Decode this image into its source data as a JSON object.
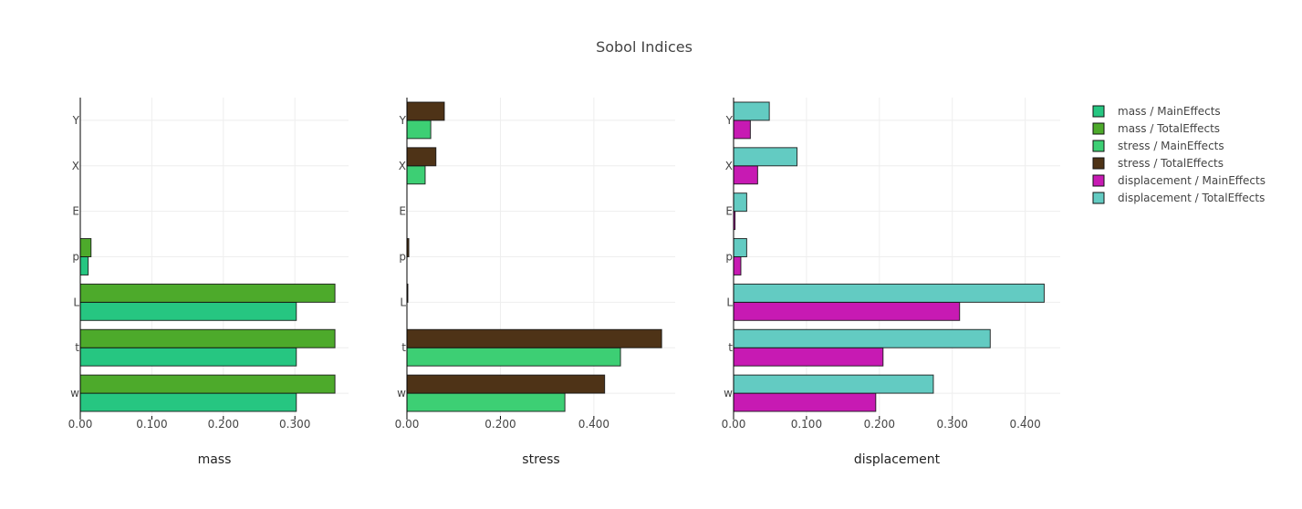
{
  "chart_data": {
    "type": "bar",
    "orientation": "horizontal",
    "title": "Sobol Indices",
    "categories": [
      "w",
      "t",
      "L",
      "p",
      "E",
      "X",
      "Y"
    ],
    "legend_position": "top-right",
    "grid": true,
    "subplots": [
      {
        "name": "mass",
        "xlabel": "mass",
        "xlim": [
          0,
          0.375
        ],
        "xticks": [
          0,
          0.1,
          0.2,
          0.3
        ],
        "xtick_labels": [
          "0.00",
          "0.100",
          "0.200",
          "0.300"
        ],
        "series": [
          {
            "name": "mass / MainEffects",
            "color": "#26C681",
            "values": [
              0.302,
              0.302,
              0.302,
              0.011,
              0.0,
              0.0,
              0.0
            ]
          },
          {
            "name": "mass / TotalEffects",
            "color": "#4DAA2B",
            "values": [
              0.356,
              0.356,
              0.356,
              0.015,
              0.0,
              0.0,
              0.0
            ]
          }
        ]
      },
      {
        "name": "stress",
        "xlabel": "stress",
        "xlim": [
          0,
          0.574
        ],
        "xticks": [
          0,
          0.2,
          0.4
        ],
        "xtick_labels": [
          "0.00",
          "0.200",
          "0.400"
        ],
        "series": [
          {
            "name": "stress / MainEffects",
            "color": "#3DCF74",
            "values": [
              0.338,
              0.457,
              0.0,
              0.0,
              0.0,
              0.039,
              0.051
            ]
          },
          {
            "name": "stress / TotalEffects",
            "color": "#4E3317",
            "values": [
              0.423,
              0.545,
              0.002,
              0.004,
              0.0,
              0.062,
              0.08
            ]
          }
        ]
      },
      {
        "name": "displacement",
        "xlabel": "displacement",
        "xlim": [
          0,
          0.448
        ],
        "xticks": [
          0,
          0.1,
          0.2,
          0.3,
          0.4
        ],
        "xtick_labels": [
          "0.00",
          "0.100",
          "0.200",
          "0.300",
          "0.400"
        ],
        "series": [
          {
            "name": "displacement / MainEffects",
            "color": "#C71AB3",
            "values": [
              0.195,
              0.205,
              0.31,
              0.01,
              0.002,
              0.033,
              0.023
            ]
          },
          {
            "name": "displacement / TotalEffects",
            "color": "#63CBC2",
            "values": [
              0.274,
              0.352,
              0.426,
              0.018,
              0.018,
              0.087,
              0.049
            ]
          }
        ]
      }
    ],
    "legend": [
      {
        "label": "mass / MainEffects",
        "color": "#26C681"
      },
      {
        "label": "mass / TotalEffects",
        "color": "#4DAA2B"
      },
      {
        "label": "stress / MainEffects",
        "color": "#3DCF74"
      },
      {
        "label": "stress / TotalEffects",
        "color": "#4E3317"
      },
      {
        "label": "displacement / MainEffects",
        "color": "#C71AB3"
      },
      {
        "label": "displacement / TotalEffects",
        "color": "#63CBC2"
      }
    ]
  }
}
